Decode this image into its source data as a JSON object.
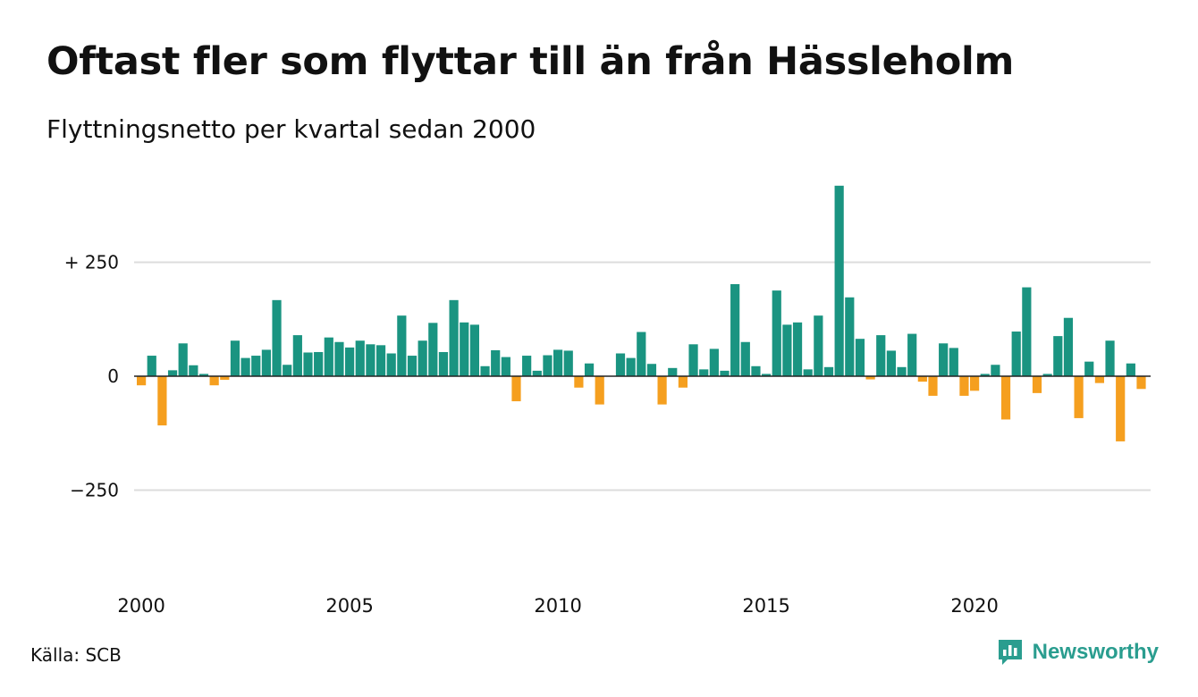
{
  "title": "Oftast fler som flyttar till än från Hässleholm",
  "subtitle": "Flyttningsnetto per kvartal sedan 2000",
  "source": "Källa: SCB",
  "brand": {
    "name": "Newsworthy",
    "icon": "newsworthy-logo-icon",
    "color": "#2a9d8f"
  },
  "colors": {
    "positive": "#1a9481",
    "negative": "#f59f1f",
    "grid": "#dcdcdc",
    "zero": "#222222",
    "text": "#111111"
  },
  "chart_data": {
    "type": "bar",
    "title": "Oftast fler som flyttar till än från Hässleholm",
    "subtitle": "Flyttningsnetto per kvartal sedan 2000",
    "xlabel": "",
    "ylabel": "",
    "ylim": [
      -400,
      420
    ],
    "yticks": [
      {
        "value": 250,
        "label": "+ 250"
      },
      {
        "value": 0,
        "label": "0"
      },
      {
        "value": -250,
        "label": "−250"
      }
    ],
    "xticks": [
      "2000",
      "2005",
      "2010",
      "2015",
      "2020"
    ],
    "start_year": 2000,
    "grid": true,
    "legend": "none",
    "values": [
      -20,
      45,
      -108,
      13,
      72,
      24,
      5,
      -20,
      -8,
      78,
      40,
      45,
      58,
      167,
      25,
      90,
      52,
      53,
      85,
      75,
      63,
      78,
      70,
      68,
      50,
      133,
      45,
      78,
      117,
      53,
      167,
      118,
      113,
      22,
      57,
      42,
      -55,
      45,
      12,
      46,
      58,
      56,
      -25,
      28,
      -62,
      0,
      50,
      40,
      97,
      27,
      -62,
      18,
      -25,
      70,
      15,
      60,
      12,
      202,
      75,
      22,
      5,
      188,
      113,
      118,
      15,
      133,
      20,
      418,
      173,
      82,
      -7,
      90,
      56,
      20,
      93,
      -12,
      -43,
      72,
      62,
      -43,
      -32,
      5,
      25,
      -95,
      98,
      195,
      -37,
      5,
      88,
      128,
      -92,
      32,
      -15,
      78,
      -143,
      28,
      -28
    ]
  }
}
